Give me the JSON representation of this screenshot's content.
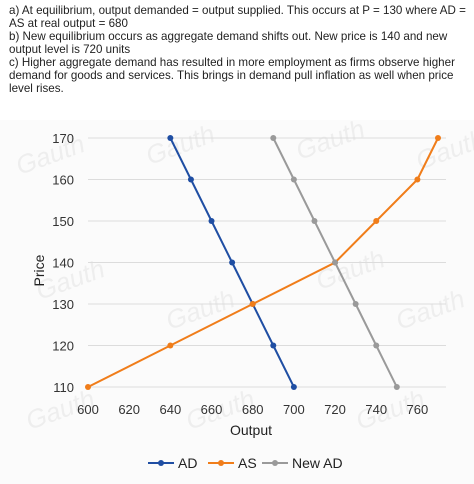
{
  "text": {
    "line_a": "a) At equilibrium, output demanded = output supplied. This occurs at P = 130 where AD = AS at real output = 680",
    "line_b": "b) New equilibrium occurs as aggregate demand shifts out. New price is 140 and new output level is 720 units",
    "line_c": "c) Higher aggregate demand has resulted in more employment as firms observe higher demand for goods and services. This brings in demand pull inflation as well when price level rises."
  },
  "watermark_text": "Gauth",
  "chart_data": {
    "type": "line",
    "xlabel": "Output",
    "ylabel": "Price",
    "xlim": [
      600,
      770
    ],
    "ylim": [
      110,
      170
    ],
    "x_ticks": [
      600,
      620,
      640,
      660,
      680,
      700,
      720,
      740,
      760
    ],
    "y_ticks": [
      110,
      120,
      130,
      140,
      150,
      160,
      170
    ],
    "grid": "horizontal",
    "legend_position": "bottom",
    "series": [
      {
        "name": "AD",
        "color": "#1f4ea3",
        "points": [
          [
            640,
            170
          ],
          [
            650,
            160
          ],
          [
            660,
            150
          ],
          [
            670,
            140
          ],
          [
            680,
            130
          ],
          [
            690,
            120
          ],
          [
            700,
            110
          ]
        ]
      },
      {
        "name": "AS",
        "color": "#f07d1a",
        "points": [
          [
            600,
            110
          ],
          [
            640,
            120
          ],
          [
            680,
            130
          ],
          [
            720,
            140
          ],
          [
            740,
            150
          ],
          [
            760,
            160
          ],
          [
            770,
            170
          ]
        ]
      },
      {
        "name": "New AD",
        "color": "#9a9a9a",
        "points": [
          [
            690,
            170
          ],
          [
            700,
            160
          ],
          [
            710,
            150
          ],
          [
            720,
            140
          ],
          [
            730,
            130
          ],
          [
            740,
            120
          ],
          [
            750,
            110
          ]
        ]
      }
    ]
  }
}
